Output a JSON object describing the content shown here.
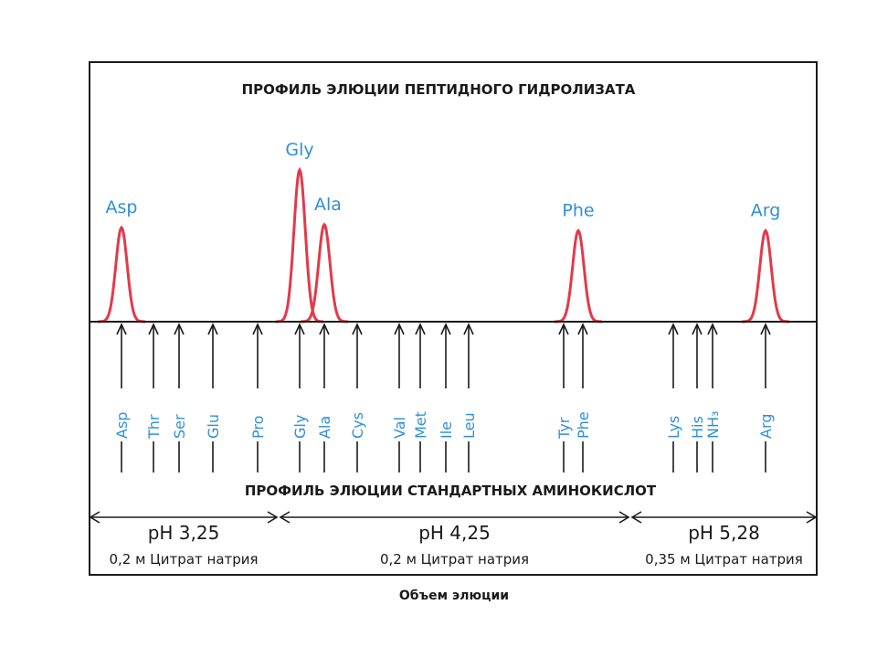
{
  "titles": {
    "top": "ПРОФИЛЬ ЭЛЮЦИИ ПЕПТИДНОГО ГИДРОЛИЗАТА",
    "bottom": "ПРОФИЛЬ ЭЛЮЦИИ СТАНДАРТНЫХ АМИНОКИСЛОТ",
    "xlabel": "Объем элюции"
  },
  "colors": {
    "peak": "#e23a4a",
    "label": "#2f8fd6",
    "ink": "#1a1a1a"
  },
  "peaks": [
    {
      "label": "Asp",
      "pos": 133,
      "height": 0.62
    },
    {
      "label": "Gly",
      "pos": 328,
      "height": 1.0
    },
    {
      "label": "Ala",
      "pos": 355,
      "height": 0.64
    },
    {
      "label": "Phe",
      "pos": 633,
      "height": 0.6
    },
    {
      "label": "Arg",
      "pos": 838,
      "height": 0.6
    }
  ],
  "standards": [
    {
      "label": "Asp",
      "pos": 133
    },
    {
      "label": "Thr",
      "pos": 168
    },
    {
      "label": "Ser",
      "pos": 196
    },
    {
      "label": "Glu",
      "pos": 233
    },
    {
      "label": "Pro",
      "pos": 282
    },
    {
      "label": "Gly",
      "pos": 328
    },
    {
      "label": "Ala",
      "pos": 355
    },
    {
      "label": "Cys",
      "pos": 391
    },
    {
      "label": "Val",
      "pos": 437
    },
    {
      "label": "Met",
      "pos": 460
    },
    {
      "label": "Ile",
      "pos": 488
    },
    {
      "label": "Leu",
      "pos": 513
    },
    {
      "label": "Tyr",
      "pos": 617
    },
    {
      "label": "Phe",
      "pos": 638
    },
    {
      "label": "Lys",
      "pos": 737
    },
    {
      "label": "His",
      "pos": 763
    },
    {
      "label": "NH₃",
      "pos": 780
    },
    {
      "label": "Arg",
      "pos": 838
    }
  ],
  "segments": [
    {
      "ph": "pH 3,25",
      "buffer": "0,2 м Цитрат натрия",
      "from": 97,
      "to": 305
    },
    {
      "ph": "pH 4,25",
      "buffer": "0,2 м Цитрат натрия",
      "from": 305,
      "to": 690
    },
    {
      "ph": "pH 5,28",
      "buffer": "0,35 м Цитрат натрия",
      "from": 690,
      "to": 895
    }
  ]
}
